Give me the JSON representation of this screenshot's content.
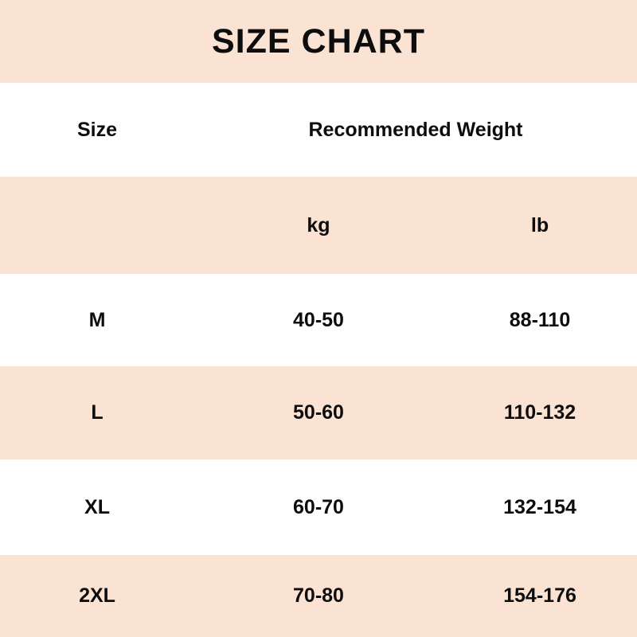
{
  "colors": {
    "peach": "#fbe3d4",
    "white": "#ffffff",
    "text": "#0d0d0d"
  },
  "chart_data": {
    "type": "table",
    "title": "SIZE CHART",
    "header": [
      "Size",
      "Recommended Weight"
    ],
    "unit_row": [
      "kg",
      "lb"
    ],
    "rows": [
      [
        "M",
        "40-50",
        "88-110"
      ],
      [
        "L",
        "50-60",
        "110-132"
      ],
      [
        "XL",
        "60-70",
        "132-154"
      ],
      [
        "2XL",
        "70-80",
        "154-176"
      ]
    ]
  }
}
